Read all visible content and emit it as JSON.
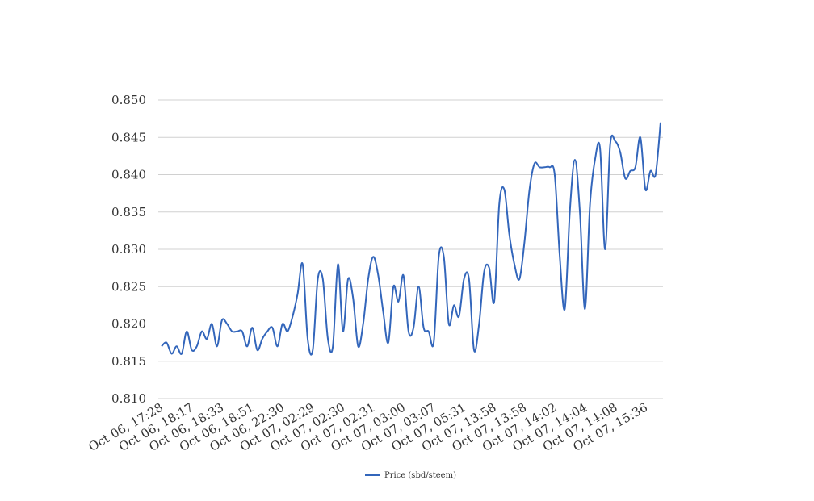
{
  "chart_data": {
    "type": "line",
    "title": "",
    "xlabel": "",
    "ylabel": "",
    "ylim": [
      0.81,
      0.85
    ],
    "y_ticks": [
      "0.810",
      "0.815",
      "0.820",
      "0.825",
      "0.830",
      "0.835",
      "0.840",
      "0.845",
      "0.850"
    ],
    "x_tick_labels": [
      "Oct 06, 17:28",
      "Oct 06, 18:17",
      "Oct 06, 18:33",
      "Oct 06, 18:51",
      "Oct 06, 22:30",
      "Oct 07, 02:29",
      "Oct 07, 02:30",
      "Oct 07, 02:31",
      "Oct 07, 03:00",
      "Oct 07, 03:07",
      "Oct 07, 05:31",
      "Oct 07, 13:58",
      "Oct 07, 13:58",
      "Oct 07, 14:02",
      "Oct 07, 14:04",
      "Oct 07, 14:08",
      "Oct 07, 15:36"
    ],
    "grid": true,
    "legend_position": "bottom",
    "colors": {
      "series": "#3366bb",
      "grid": "#d0d0d0"
    },
    "series": [
      {
        "name": "Price (sbd/steem)",
        "values": [
          0.817,
          0.8175,
          0.816,
          0.817,
          0.816,
          0.819,
          0.8165,
          0.817,
          0.819,
          0.818,
          0.82,
          0.817,
          0.8205,
          0.82,
          0.819,
          0.819,
          0.819,
          0.817,
          0.8195,
          0.8165,
          0.818,
          0.819,
          0.8195,
          0.817,
          0.82,
          0.819,
          0.821,
          0.824,
          0.828,
          0.818,
          0.8165,
          0.826,
          0.826,
          0.818,
          0.817,
          0.828,
          0.819,
          0.826,
          0.8235,
          0.817,
          0.82,
          0.826,
          0.829,
          0.8265,
          0.8215,
          0.8175,
          0.825,
          0.823,
          0.8265,
          0.819,
          0.8195,
          0.825,
          0.8195,
          0.819,
          0.8175,
          0.829,
          0.829,
          0.82,
          0.8225,
          0.821,
          0.826,
          0.826,
          0.8165,
          0.82,
          0.827,
          0.8275,
          0.823,
          0.836,
          0.838,
          0.832,
          0.828,
          0.826,
          0.831,
          0.838,
          0.8415,
          0.841,
          0.841,
          0.841,
          0.84,
          0.829,
          0.822,
          0.835,
          0.842,
          0.835,
          0.822,
          0.836,
          0.842,
          0.8435,
          0.83,
          0.844,
          0.8445,
          0.843,
          0.8395,
          0.8405,
          0.841,
          0.845,
          0.838,
          0.8405,
          0.84,
          0.847
        ]
      }
    ]
  }
}
